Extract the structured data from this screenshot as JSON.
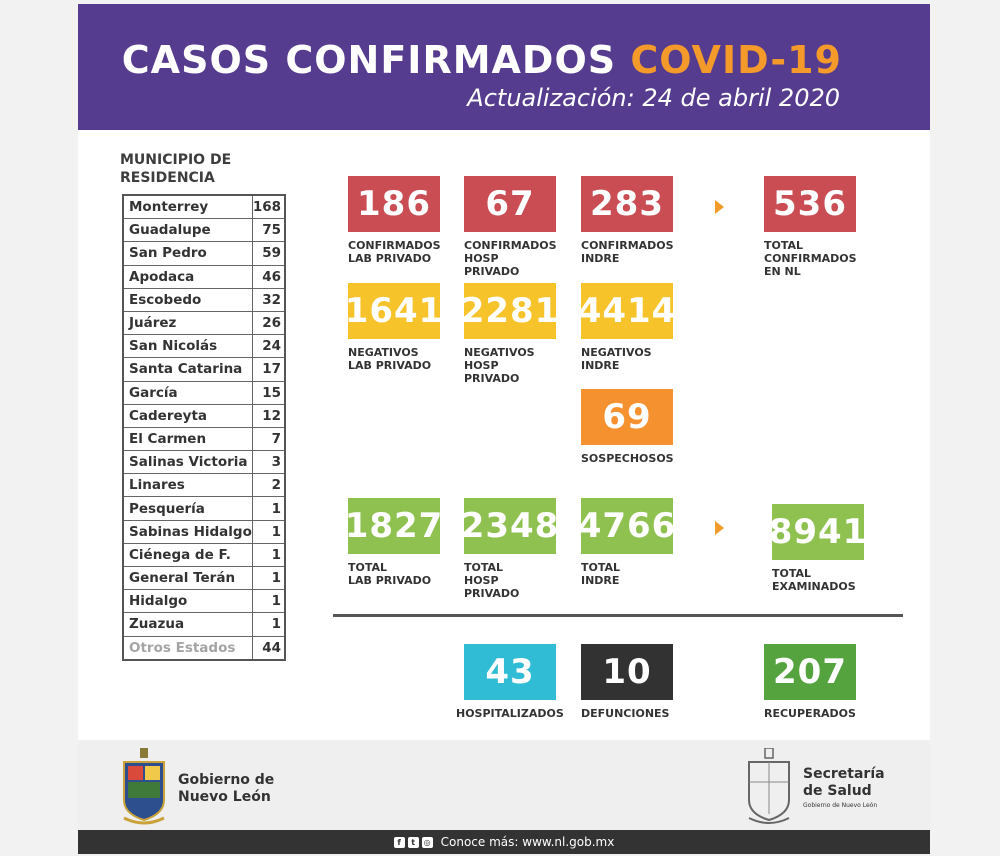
{
  "header": {
    "title_main": "CASOS CONFIRMADOS ",
    "title_accent": "COVID-19",
    "subtitle": "Actualización: 24 de abril 2020"
  },
  "municipios": {
    "heading": "MUNICIPIO DE\nRESIDENCIA",
    "rows": [
      {
        "name": "Monterrey",
        "count": "168"
      },
      {
        "name": "Guadalupe",
        "count": "75"
      },
      {
        "name": "San Pedro",
        "count": "59"
      },
      {
        "name": "Apodaca",
        "count": "46"
      },
      {
        "name": "Escobedo",
        "count": "32"
      },
      {
        "name": "Juárez",
        "count": "26"
      },
      {
        "name": "San Nicolás",
        "count": "24"
      },
      {
        "name": "Santa Catarina",
        "count": "17"
      },
      {
        "name": "García",
        "count": "15"
      },
      {
        "name": "Cadereyta",
        "count": "12"
      },
      {
        "name": "El Carmen",
        "count": "7"
      },
      {
        "name": "Salinas Victoria",
        "count": "3"
      },
      {
        "name": "Linares",
        "count": "2"
      },
      {
        "name": "Pesquería",
        "count": "1"
      },
      {
        "name": "Sabinas Hidalgo",
        "count": "1"
      },
      {
        "name": "Ciénega de F.",
        "count": "1"
      },
      {
        "name": "General Terán",
        "count": "1"
      },
      {
        "name": "Hidalgo",
        "count": "1"
      },
      {
        "name": "Zuazua",
        "count": "1"
      },
      {
        "name": "Otros Estados",
        "count": "44"
      }
    ]
  },
  "stats": {
    "conf_lab": {
      "value": "186",
      "label": "CONFIRMADOS\nLAB PRIVADO"
    },
    "conf_hosp": {
      "value": "67",
      "label": "CONFIRMADOS\nHOSP PRIVADO"
    },
    "conf_indre": {
      "value": "283",
      "label": "CONFIRMADOS\nINDRE"
    },
    "conf_total": {
      "value": "536",
      "label": "TOTAL\nCONFIRMADOS\nEN NL"
    },
    "neg_lab": {
      "value": "1641",
      "label": "NEGATIVOS\nLAB PRIVADO"
    },
    "neg_hosp": {
      "value": "2281",
      "label": "NEGATIVOS\nHOSP PRIVADO"
    },
    "neg_indre": {
      "value": "4414",
      "label": "NEGATIVOS\nINDRE"
    },
    "sospechosos": {
      "value": "69",
      "label": "SOSPECHOSOS"
    },
    "tot_lab": {
      "value": "1827",
      "label": "TOTAL\nLAB PRIVADO"
    },
    "tot_hosp": {
      "value": "2348",
      "label": "TOTAL\nHOSP PRIVADO"
    },
    "tot_indre": {
      "value": "4766",
      "label": "TOTAL\nINDRE"
    },
    "examinados": {
      "value": "8941",
      "label": "TOTAL\nEXAMINADOS"
    },
    "hospitalizados": {
      "value": "43",
      "label": "HOSPITALIZADOS"
    },
    "defunciones": {
      "value": "10",
      "label": "DEFUNCIONES"
    },
    "recuperados": {
      "value": "207",
      "label": "RECUPERADOS"
    }
  },
  "footer": {
    "gov_text": "Gobierno de\nNuevo León",
    "salud_text": "Secretaría\nde Salud",
    "salud_sub": "Gobierno de Nuevo León",
    "social_icons": [
      "facebook-icon",
      "twitter-icon",
      "instagram-icon"
    ],
    "bar_text": "Conoce más: www.nl.gob.mx"
  },
  "colors": {
    "header_purple": "#563c8e",
    "accent_orange": "#f49a2a",
    "confirmed_red": "#c94d53",
    "negative_yellow": "#f7c32a",
    "suspect_orange": "#f5912f",
    "total_green": "#8fc150",
    "hosp_cyan": "#2fbcd4",
    "deaths_dark": "#323232",
    "recovered_green": "#55a33f"
  }
}
